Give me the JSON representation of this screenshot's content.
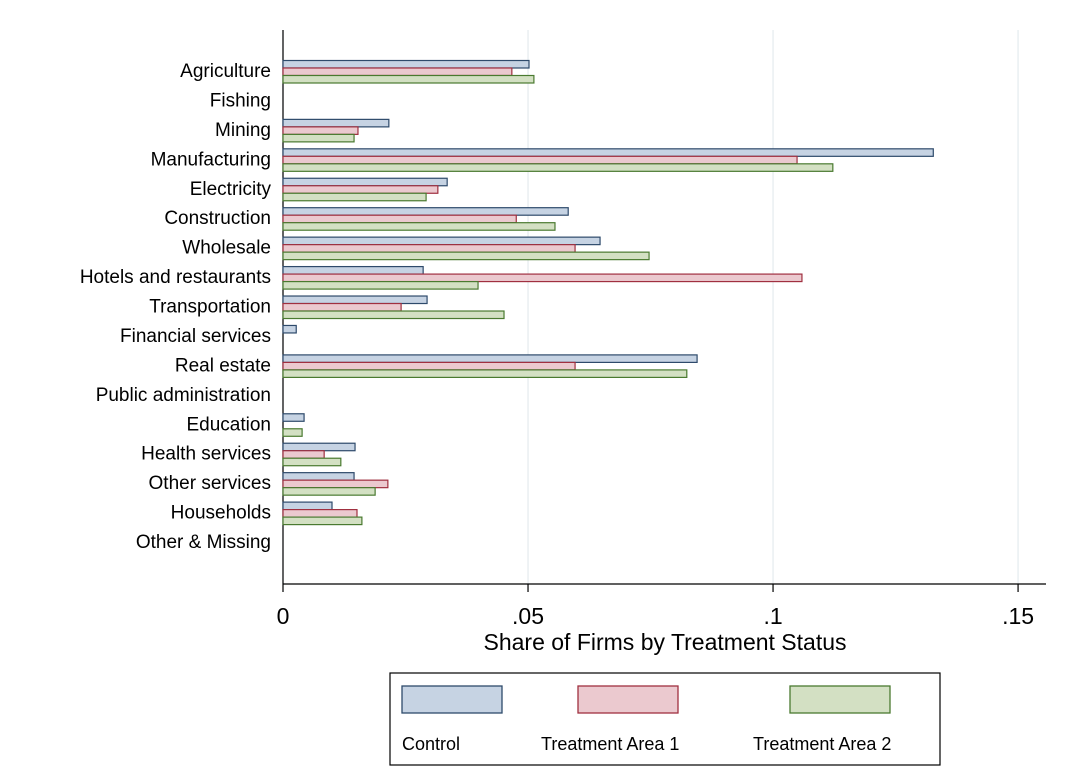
{
  "chart_data": {
    "type": "hbar",
    "xlabel": "Share of Firms by Treatment Status",
    "categories": [
      "Agriculture",
      "Fishing",
      "Mining",
      "Manufacturing",
      "Electricity",
      "Construction",
      "Wholesale",
      "Hotels and restaurants",
      "Transportation",
      "Financial services",
      "Real estate",
      "Public administration",
      "Education",
      "Health services",
      "Other services",
      "Households",
      "Other & Missing"
    ],
    "series": [
      {
        "name": "Control",
        "color": "#c6d3e3",
        "stroke": "#2e4a6b",
        "values": [
          0.0502,
          0,
          0.0216,
          0.1327,
          0.0335,
          0.0582,
          0.0647,
          0.0286,
          0.0294,
          0.0027,
          0.0845,
          0,
          0.0043,
          0.0147,
          0.0145,
          0.01,
          0
        ]
      },
      {
        "name": "Treatment Area 1",
        "color": "#ebc9cf",
        "stroke": "#a03040",
        "values": [
          0.0467,
          0,
          0.0153,
          0.1049,
          0.0316,
          0.0476,
          0.0596,
          0.1059,
          0.0241,
          0,
          0.0596,
          0,
          0,
          0.0084,
          0.0214,
          0.0151,
          0
        ]
      },
      {
        "name": "Treatment Area 2",
        "color": "#d3e0c3",
        "stroke": "#4a7a30",
        "values": [
          0.0512,
          0,
          0.0145,
          0.1122,
          0.0292,
          0.0555,
          0.0747,
          0.0398,
          0.0451,
          0,
          0.0824,
          0,
          0.0039,
          0.0118,
          0.0188,
          0.0161,
          0
        ]
      }
    ],
    "xlim": [
      0,
      0.1557
    ],
    "xticks": [
      0,
      {
        "value": 0.05,
        "label": ".05"
      },
      {
        "value": 0.1,
        "label": ".1"
      },
      {
        "value": 0.15,
        "label": ".15"
      }
    ],
    "grid": true
  }
}
